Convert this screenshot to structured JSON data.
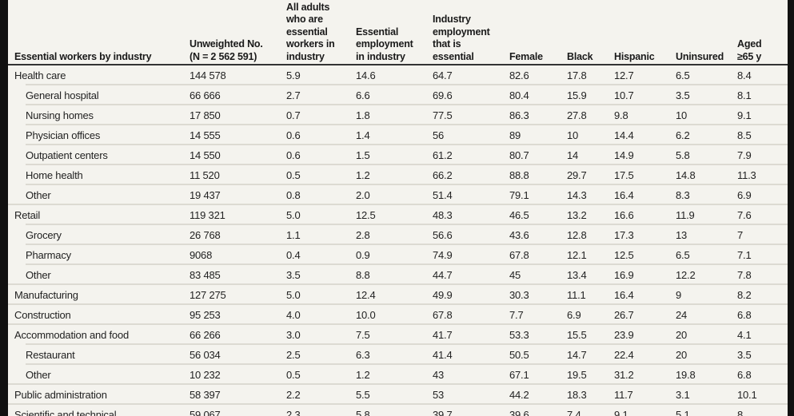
{
  "columns": [
    "Essential workers by industry",
    "Unweighted No. (N = 2 562 591)",
    "All adults who are essential workers in industry",
    "Essential employment in industry",
    "Industry employment that is essential",
    "Female",
    "Black",
    "Hispanic",
    "Uninsured",
    "Aged ≥65 y"
  ],
  "header_lines": [
    [
      "Essential workers by industry"
    ],
    [
      "Unweighted No.",
      "(N = 2 562 591)"
    ],
    [
      "All adults",
      "who are",
      "essential",
      "workers in",
      "industry"
    ],
    [
      "Essential",
      "employment",
      "in industry"
    ],
    [
      "Industry",
      "employment",
      "that is",
      "essential"
    ],
    [
      "Female"
    ],
    [
      "Black"
    ],
    [
      "Hispanic"
    ],
    [
      "Uninsured"
    ],
    [
      "Aged",
      "≥65 y"
    ]
  ],
  "rows": [
    {
      "label": "Health care",
      "sub": false,
      "values": [
        "144 578",
        "5.9",
        "14.6",
        "64.7",
        "82.6",
        "17.8",
        "12.7",
        "6.5",
        "8.4"
      ]
    },
    {
      "label": "General hospital",
      "sub": true,
      "values": [
        "66 666",
        "2.7",
        "6.6",
        "69.6",
        "80.4",
        "15.9",
        "10.7",
        "3.5",
        "8.1"
      ]
    },
    {
      "label": "Nursing homes",
      "sub": true,
      "values": [
        "17 850",
        "0.7",
        "1.8",
        "77.5",
        "86.3",
        "27.8",
        "9.8",
        "10",
        "9.1"
      ]
    },
    {
      "label": "Physician offices",
      "sub": true,
      "values": [
        "14 555",
        "0.6",
        "1.4",
        "56",
        "89",
        "10",
        "14.4",
        "6.2",
        "8.5"
      ]
    },
    {
      "label": "Outpatient centers",
      "sub": true,
      "values": [
        "14 550",
        "0.6",
        "1.5",
        "61.2",
        "80.7",
        "14",
        "14.9",
        "5.8",
        "7.9"
      ]
    },
    {
      "label": "Home health",
      "sub": true,
      "values": [
        "11 520",
        "0.5",
        "1.2",
        "66.2",
        "88.8",
        "29.7",
        "17.5",
        "14.8",
        "11.3"
      ]
    },
    {
      "label": "Other",
      "sub": true,
      "values": [
        "19 437",
        "0.8",
        "2.0",
        "51.4",
        "79.1",
        "14.3",
        "16.4",
        "8.3",
        "6.9"
      ]
    },
    {
      "label": "Retail",
      "sub": false,
      "values": [
        "119 321",
        "5.0",
        "12.5",
        "48.3",
        "46.5",
        "13.2",
        "16.6",
        "11.9",
        "7.6"
      ]
    },
    {
      "label": "Grocery",
      "sub": true,
      "values": [
        "26 768",
        "1.1",
        "2.8",
        "56.6",
        "43.6",
        "12.8",
        "17.3",
        "13",
        "7"
      ]
    },
    {
      "label": "Pharmacy",
      "sub": true,
      "values": [
        "9068",
        "0.4",
        "0.9",
        "74.9",
        "67.8",
        "12.1",
        "12.5",
        "6.5",
        "7.1"
      ]
    },
    {
      "label": "Other",
      "sub": true,
      "values": [
        "83 485",
        "3.5",
        "8.8",
        "44.7",
        "45",
        "13.4",
        "16.9",
        "12.2",
        "7.8"
      ]
    },
    {
      "label": "Manufacturing",
      "sub": false,
      "values": [
        "127 275",
        "5.0",
        "12.4",
        "49.9",
        "30.3",
        "11.1",
        "16.4",
        "9",
        "8.2"
      ]
    },
    {
      "label": "Construction",
      "sub": false,
      "values": [
        "95 253",
        "4.0",
        "10.0",
        "67.8",
        "7.7",
        "6.9",
        "26.7",
        "24",
        "6.8"
      ]
    },
    {
      "label": "Accommodation and food",
      "sub": false,
      "values": [
        "66 266",
        "3.0",
        "7.5",
        "41.7",
        "53.3",
        "15.5",
        "23.9",
        "20",
        "4.1"
      ]
    },
    {
      "label": "Restaurant",
      "sub": true,
      "values": [
        "56 034",
        "2.5",
        "6.3",
        "41.4",
        "50.5",
        "14.7",
        "22.4",
        "20",
        "3.5"
      ]
    },
    {
      "label": "Other",
      "sub": true,
      "values": [
        "10 232",
        "0.5",
        "1.2",
        "43",
        "67.1",
        "19.5",
        "31.2",
        "19.8",
        "6.8"
      ]
    },
    {
      "label": "Public administration",
      "sub": false,
      "values": [
        "58 397",
        "2.2",
        "5.5",
        "53",
        "44.2",
        "18.3",
        "11.7",
        "3.1",
        "10.1"
      ]
    },
    {
      "label": "Scientific and technical",
      "sub": false,
      "values": [
        "59 067",
        "2.3",
        "5.8",
        "39.7",
        "39.6",
        "7.4",
        "9.1",
        "5.1",
        "8"
      ]
    }
  ]
}
